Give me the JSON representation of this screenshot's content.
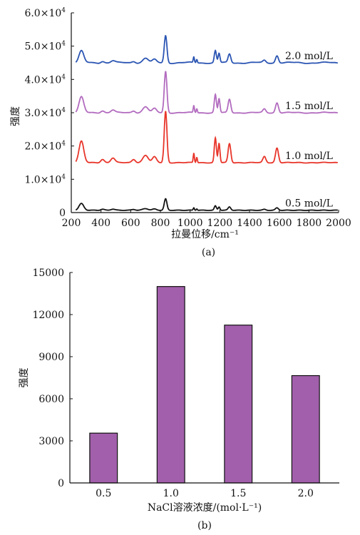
{
  "chart_data": [
    {
      "id": "a",
      "type": "line",
      "caption": "(a)",
      "xlabel": "拉曼位移/cm⁻¹",
      "ylabel": "强度",
      "xlim": [
        200,
        2000
      ],
      "ylim": [
        0,
        60000
      ],
      "x_ticks": [
        200,
        400,
        600,
        800,
        1000,
        1200,
        1400,
        1600,
        1800,
        2000
      ],
      "y_ticks": [
        {
          "value": 0,
          "label": "0"
        },
        {
          "value": 10000,
          "label": "1.0×10",
          "exp": "4"
        },
        {
          "value": 20000,
          "label": "2.0×10",
          "exp": "4"
        },
        {
          "value": 30000,
          "label": "3.0×10",
          "exp": "4"
        },
        {
          "value": 40000,
          "label": "4.0×10",
          "exp": "4"
        },
        {
          "value": 50000,
          "label": "5.0×10",
          "exp": "4"
        },
        {
          "value": 60000,
          "label": "6.0×10",
          "exp": "4"
        }
      ],
      "grid": false,
      "series": [
        {
          "name": "0.5 mol/L",
          "color": "#111111",
          "baseline": 700,
          "peaks": [
            [
              268,
              2000,
              16
            ],
            [
              410,
              300,
              12
            ],
            [
              480,
              350,
              14
            ],
            [
              620,
              250,
              12
            ],
            [
              700,
              500,
              18
            ],
            [
              760,
              350,
              14
            ],
            [
              835,
              3400,
              9
            ],
            [
              1025,
              750,
              4
            ],
            [
              1045,
              450,
              4
            ],
            [
              1170,
              1300,
              7
            ],
            [
              1195,
              1000,
              6
            ],
            [
              1265,
              1000,
              9
            ],
            [
              1500,
              250,
              10
            ],
            [
              1585,
              700,
              10
            ]
          ]
        },
        {
          "name": "1.0 mol/L",
          "color": "#e8352a",
          "baseline": 15000,
          "peaks": [
            [
              268,
              6400,
              16
            ],
            [
              410,
              1000,
              12
            ],
            [
              480,
              1400,
              14
            ],
            [
              620,
              1000,
              12
            ],
            [
              700,
              2200,
              18
            ],
            [
              760,
              1700,
              14
            ],
            [
              835,
              15400,
              9
            ],
            [
              1025,
              2800,
              4
            ],
            [
              1045,
              1600,
              4
            ],
            [
              1170,
              7400,
              7
            ],
            [
              1195,
              5800,
              6
            ],
            [
              1265,
              5700,
              9
            ],
            [
              1500,
              1800,
              10
            ],
            [
              1585,
              4400,
              10
            ]
          ]
        },
        {
          "name": "1.5 mol/L",
          "color": "#b26bbf",
          "baseline": 30000,
          "peaks": [
            [
              268,
              4700,
              16
            ],
            [
              410,
              600,
              12
            ],
            [
              480,
              800,
              14
            ],
            [
              620,
              600,
              12
            ],
            [
              700,
              1800,
              18
            ],
            [
              760,
              1200,
              14
            ],
            [
              835,
              12400,
              9
            ],
            [
              1025,
              2100,
              4
            ],
            [
              1045,
              1200,
              4
            ],
            [
              1170,
              5400,
              7
            ],
            [
              1195,
              4200,
              6
            ],
            [
              1265,
              4000,
              9
            ],
            [
              1500,
              1100,
              10
            ],
            [
              1585,
              3000,
              10
            ]
          ]
        },
        {
          "name": "2.0 mol/L",
          "color": "#2b55b3",
          "baseline": 45000,
          "peaks": [
            [
              268,
              3500,
              16
            ],
            [
              410,
              500,
              12
            ],
            [
              480,
              600,
              14
            ],
            [
              620,
              500,
              12
            ],
            [
              700,
              1400,
              18
            ],
            [
              760,
              900,
              14
            ],
            [
              835,
              8200,
              9
            ],
            [
              1025,
              1700,
              4
            ],
            [
              1045,
              1000,
              4
            ],
            [
              1170,
              3600,
              7
            ],
            [
              1195,
              2800,
              6
            ],
            [
              1265,
              2600,
              9
            ],
            [
              1500,
              700,
              10
            ],
            [
              1585,
              2200,
              10
            ]
          ]
        }
      ]
    },
    {
      "id": "b",
      "type": "bar",
      "caption": "(b)",
      "xlabel": "NaCl溶液浓度/(mol·L⁻¹)",
      "ylabel": "强度",
      "categories": [
        "0.5",
        "1.0",
        "1.5",
        "2.0"
      ],
      "values": [
        3550,
        14000,
        11250,
        7650
      ],
      "ylim": [
        0,
        15000
      ],
      "y_ticks": [
        0,
        3000,
        6000,
        9000,
        12000,
        15000
      ],
      "bar_color": "#a25fab",
      "edge_color": "#111111",
      "grid": false
    }
  ]
}
